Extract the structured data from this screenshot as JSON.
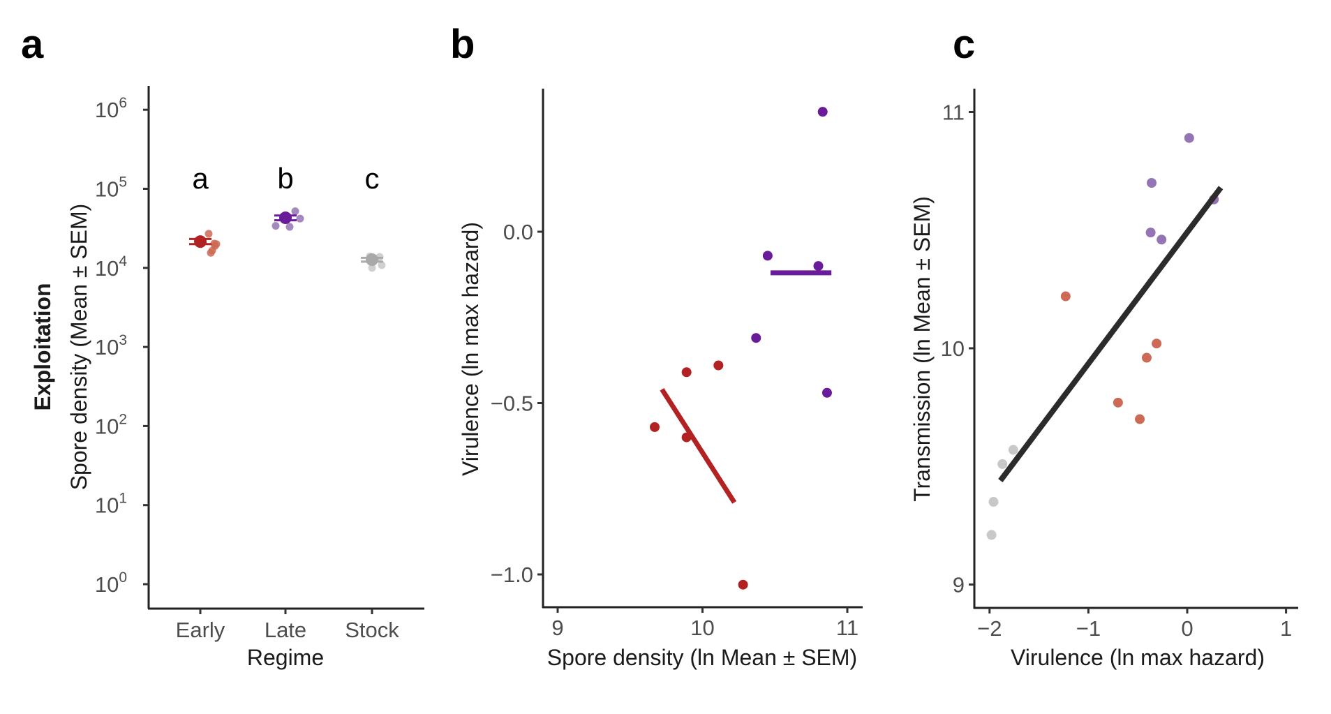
{
  "colors": {
    "early": "#B22222",
    "early_points": "#CD6A55",
    "late": "#6A1B9A",
    "late_points": "#9474B4",
    "stock": "#A9A9A9",
    "stock_points": "#C8C8C8",
    "fit_line": "#2B2B2B"
  },
  "chart_data": [
    {
      "panel": "a",
      "type": "scatter",
      "panel_label": "a",
      "title": "",
      "row_label": "Exploitation",
      "xlabel": "Regime",
      "ylabel": "Spore density (Mean ± SEM)",
      "yscale": "log10",
      "ylim": [
        0.7,
        2000000
      ],
      "yticks": [
        1,
        10,
        100,
        1000,
        10000,
        100000,
        1000000
      ],
      "ytick_labels": [
        {
          "base": "10",
          "exp": "0"
        },
        {
          "base": "10",
          "exp": "1"
        },
        {
          "base": "10",
          "exp": "2"
        },
        {
          "base": "10",
          "exp": "3"
        },
        {
          "base": "10",
          "exp": "4"
        },
        {
          "base": "10",
          "exp": "5"
        },
        {
          "base": "10",
          "exp": "6"
        }
      ],
      "categories": [
        "Early",
        "Late",
        "Stock"
      ],
      "significance_letters": [
        "a",
        "b",
        "c"
      ],
      "series": [
        {
          "name": "Early",
          "mean": 21500,
          "sem_low": 20000,
          "sem_high": 23200,
          "points": [
            27000,
            20300,
            20000,
            18900,
            16500,
            15500
          ]
        },
        {
          "name": "Late",
          "mean": 43000,
          "sem_low": 40000,
          "sem_high": 46000,
          "points": [
            52000,
            42000,
            34000,
            33000
          ]
        },
        {
          "name": "Stock",
          "mean": 12700,
          "sem_low": 12000,
          "sem_high": 13400,
          "points": [
            14000,
            13800,
            10800,
            10000
          ]
        }
      ]
    },
    {
      "panel": "b",
      "type": "scatter",
      "panel_label": "b",
      "xlabel": "Spore density (ln Mean ± SEM)",
      "ylabel": "Virulence (ln max hazard)",
      "xlim": [
        8.9,
        11.1
      ],
      "ylim": [
        -1.1,
        0.4
      ],
      "xticks": [
        9,
        10,
        11
      ],
      "xtick_labels": [
        "9",
        "10",
        "11"
      ],
      "yticks": [
        -1.0,
        -0.5,
        0.0
      ],
      "ytick_labels": [
        "−1.0",
        "−0.5",
        "0.0"
      ],
      "series": [
        {
          "name": "Early",
          "x": [
            9.89,
            10.11,
            9.67,
            9.89,
            10.28
          ],
          "y": [
            -0.41,
            -0.39,
            -0.57,
            -0.6,
            -1.03
          ],
          "fit": {
            "x": [
              9.72,
              10.22
            ],
            "y": [
              -0.46,
              -0.79
            ]
          }
        },
        {
          "name": "Late",
          "x": [
            10.83,
            10.45,
            10.8,
            10.37,
            10.86
          ],
          "y": [
            0.35,
            -0.07,
            -0.1,
            -0.31,
            -0.47
          ],
          "fit": {
            "x": [
              10.47,
              10.89
            ],
            "y": [
              -0.12,
              -0.12
            ]
          }
        }
      ]
    },
    {
      "panel": "c",
      "type": "scatter",
      "panel_label": "c",
      "xlabel": "Virulence (ln max hazard)",
      "ylabel": "Transmission (ln Mean ± SEM)",
      "xlim": [
        -2.15,
        1.12
      ],
      "ylim": [
        8.9,
        11.15
      ],
      "xticks": [
        -2,
        -1,
        0,
        1
      ],
      "xtick_labels": [
        "−2",
        "−1",
        "0",
        "1"
      ],
      "yticks": [
        9,
        10,
        11
      ],
      "ytick_labels": [
        "9",
        "10",
        "11"
      ],
      "series": [
        {
          "name": "Late",
          "x": [
            0.02,
            -0.36,
            -0.37,
            -0.26,
            0.27
          ],
          "y": [
            10.89,
            10.7,
            10.49,
            10.46,
            10.63
          ]
        },
        {
          "name": "Early",
          "x": [
            -1.23,
            -0.31,
            -0.41,
            -0.7,
            -0.48
          ],
          "y": [
            10.22,
            10.02,
            9.96,
            9.77,
            9.7
          ]
        },
        {
          "name": "Stock",
          "x": [
            -1.76,
            -1.87,
            -1.96,
            -1.98
          ],
          "y": [
            9.57,
            9.51,
            9.35,
            9.21
          ]
        }
      ],
      "fit": {
        "x": [
          -1.89,
          0.34
        ],
        "y": [
          9.44,
          10.68
        ]
      }
    }
  ]
}
